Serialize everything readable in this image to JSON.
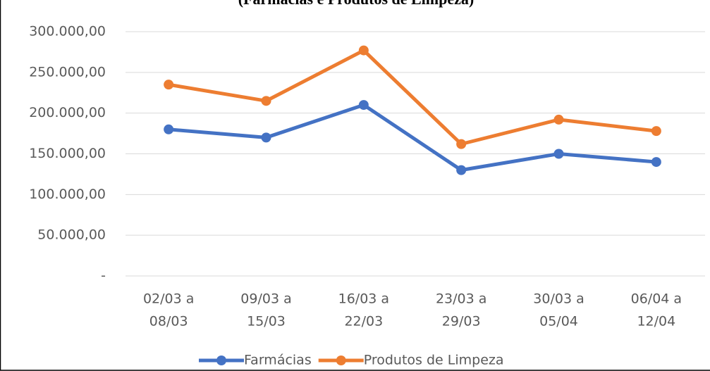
{
  "chart_data": {
    "type": "line",
    "title": "(Farmácias e Produtos de Limpeza)",
    "categories": [
      [
        "02/03 a",
        "08/03"
      ],
      [
        "09/03 a",
        "15/03"
      ],
      [
        "16/03 a",
        "22/03"
      ],
      [
        "23/03 a",
        "29/03"
      ],
      [
        "30/03 a",
        "05/04"
      ],
      [
        "06/04 a",
        "12/04"
      ]
    ],
    "series": [
      {
        "name": "Farmácias",
        "color": "#4472c4",
        "values": [
          180000,
          170000,
          210000,
          130000,
          150000,
          140000
        ]
      },
      {
        "name": "Produtos de Limpeza",
        "color": "#ed7d31",
        "values": [
          235000,
          215000,
          277000,
          162000,
          192000,
          178000
        ]
      }
    ],
    "ylim": [
      0,
      300000
    ],
    "yticks": [
      {
        "value": 0,
        "label": "-"
      },
      {
        "value": 50000,
        "label": "50.000,00"
      },
      {
        "value": 100000,
        "label": "100.000,00"
      },
      {
        "value": 150000,
        "label": "150.000,00"
      },
      {
        "value": 200000,
        "label": "200.000,00"
      },
      {
        "value": 250000,
        "label": "250.000,00"
      },
      {
        "value": 300000,
        "label": "300.000,00"
      }
    ],
    "grid": true,
    "legend": "bottom"
  }
}
